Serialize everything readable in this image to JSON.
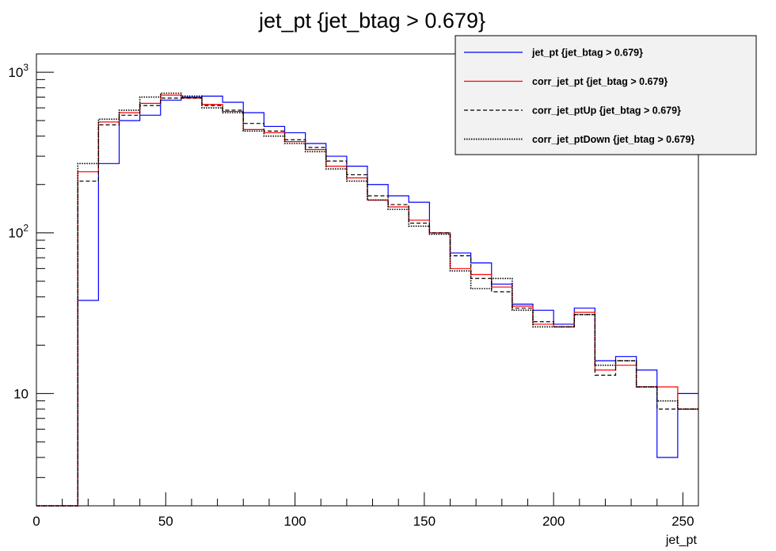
{
  "chart_data": {
    "type": "histogram",
    "title": "jet_pt {jet_btag > 0.679}",
    "xlabel": "jet_pt",
    "ylabel": "",
    "xlim": [
      0,
      256
    ],
    "ylim": [
      2,
      1300
    ],
    "yscale": "log",
    "x_ticks": [
      0,
      50,
      100,
      150,
      200,
      250
    ],
    "x_tick_labels": [
      "0",
      "50",
      "100",
      "150",
      "200",
      "250"
    ],
    "y_ticks": [
      10,
      100,
      1000
    ],
    "y_tick_labels": [
      "10",
      "10²",
      "10³"
    ],
    "grid": false,
    "legend_position": "top-right",
    "bin_edges": [
      0,
      8,
      16,
      24,
      32,
      40,
      48,
      56,
      64,
      72,
      80,
      88,
      96,
      104,
      112,
      120,
      128,
      136,
      144,
      152,
      160,
      168,
      176,
      184,
      192,
      200,
      208,
      216,
      224,
      232,
      240,
      248,
      256
    ],
    "series": [
      {
        "name": "jet_pt {jet_btag > 0.679}",
        "color": "#0000ff",
        "dash": "solid",
        "values": [
          2,
          2,
          38,
          270,
          500,
          540,
          670,
          700,
          710,
          650,
          560,
          460,
          420,
          360,
          300,
          260,
          200,
          170,
          155,
          100,
          75,
          65,
          48,
          36,
          33,
          27,
          34,
          16,
          17,
          14,
          4,
          10
        ]
      },
      {
        "name": "corr_jet_pt {jet_btag > 0.679}",
        "color": "#ff0000",
        "dash": "solid",
        "values": [
          2,
          2,
          240,
          490,
          560,
          640,
          720,
          690,
          630,
          570,
          440,
          420,
          370,
          330,
          260,
          220,
          160,
          145,
          120,
          100,
          60,
          55,
          46,
          35,
          27,
          26,
          32,
          14,
          15,
          11,
          11,
          8
        ]
      },
      {
        "name": "corr_jet_ptUp {jet_btag > 0.679}",
        "color": "#000000",
        "dash": "dashed",
        "values": [
          2,
          2,
          210,
          470,
          540,
          620,
          690,
          690,
          620,
          580,
          480,
          430,
          380,
          340,
          280,
          230,
          170,
          150,
          115,
          100,
          72,
          52,
          43,
          34,
          28,
          26,
          31,
          13,
          16,
          11,
          8,
          8
        ]
      },
      {
        "name": "corr_jet_ptDown {jet_btag > 0.679}",
        "color": "#000000",
        "dash": "dotted",
        "values": [
          2,
          2,
          270,
          510,
          580,
          700,
          740,
          710,
          600,
          560,
          430,
          400,
          360,
          320,
          250,
          210,
          160,
          140,
          110,
          98,
          58,
          45,
          52,
          33,
          26,
          26,
          31,
          15,
          16,
          11,
          9,
          8
        ]
      }
    ]
  }
}
